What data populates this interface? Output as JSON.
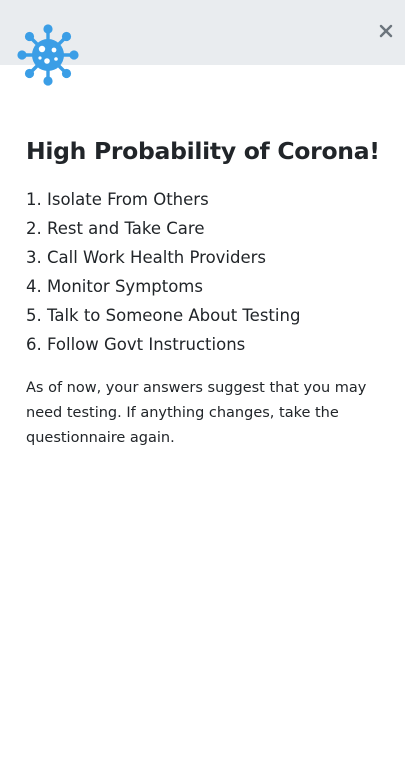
{
  "header": {
    "logo_icon": "virus-icon",
    "logo_color": "#3b9ee6",
    "close_icon": "close-icon"
  },
  "main": {
    "title": "High Probability of Corona!",
    "steps": [
      "1. Isolate From Others",
      "2. Rest and Take Care",
      "3. Call Work Health Providers",
      "4. Monitor Symptoms",
      "5. Talk to Someone About Testing",
      "6. Follow Govt Instructions"
    ],
    "note": "As of now, your answers suggest that you may need testing. If anything changes, take the questionnaire again."
  },
  "colors": {
    "header_bg": "#e9ecef",
    "text": "#212529",
    "close": "#6c757d"
  }
}
